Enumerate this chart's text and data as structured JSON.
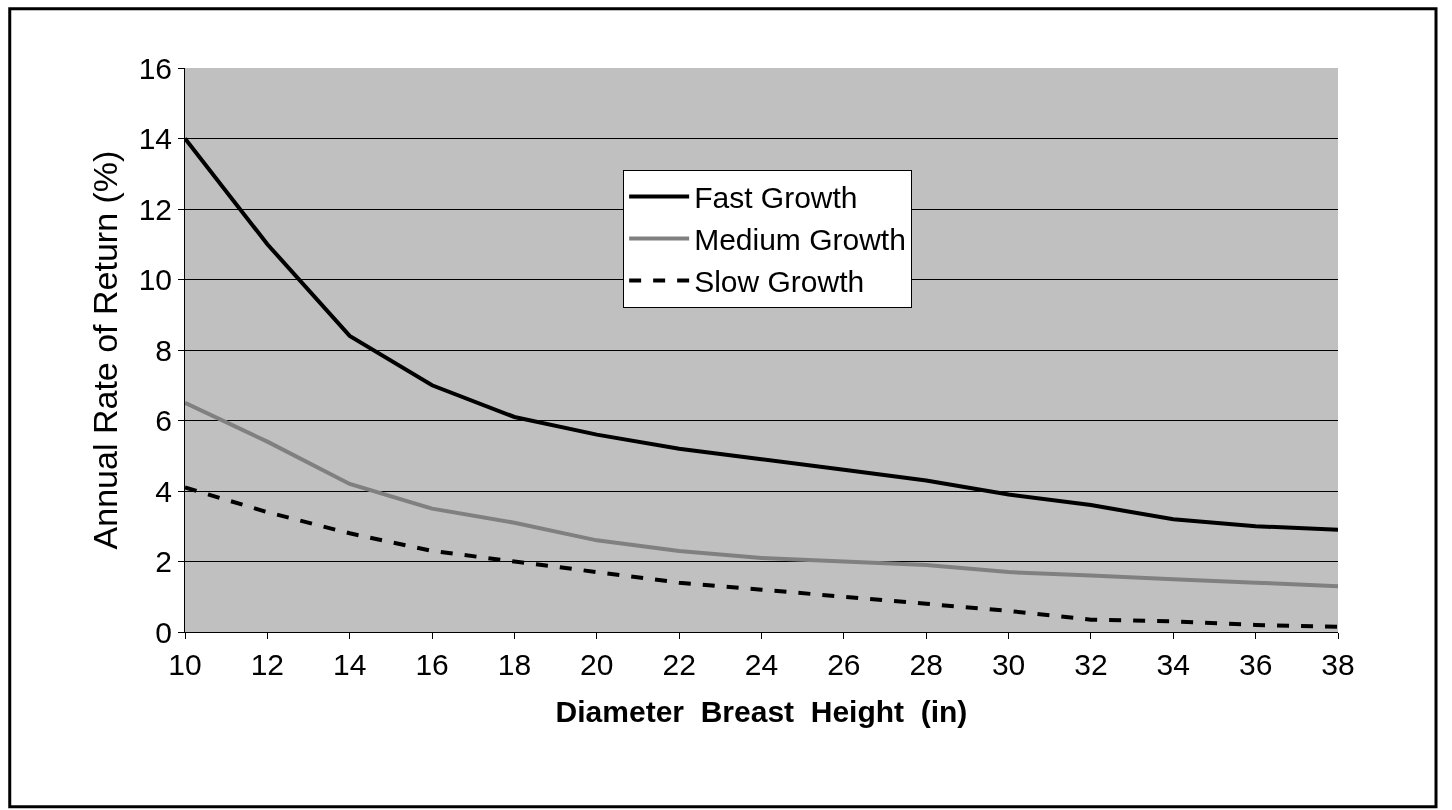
{
  "chart_data": {
    "type": "line",
    "xlabel": "Diameter  Breast  Height  (in)",
    "ylabel": "Annual Rate of Return (%)",
    "x": [
      10,
      12,
      14,
      16,
      18,
      20,
      22,
      24,
      26,
      28,
      30,
      32,
      34,
      36,
      38
    ],
    "series": [
      {
        "name": "Fast Growth",
        "color": "#000000",
        "line_style": "solid",
        "values": [
          14.0,
          11.0,
          8.4,
          7.0,
          6.1,
          5.6,
          5.2,
          4.9,
          4.6,
          4.3,
          3.9,
          3.6,
          3.2,
          3.0,
          2.9
        ]
      },
      {
        "name": "Medium Growth",
        "color": "#808080",
        "line_style": "solid",
        "values": [
          6.5,
          5.4,
          4.2,
          3.5,
          3.1,
          2.6,
          2.3,
          2.1,
          2.0,
          1.9,
          1.7,
          1.6,
          1.5,
          1.4,
          1.3
        ]
      },
      {
        "name": "Slow Growth",
        "color": "#000000",
        "line_style": "dashed",
        "values": [
          4.1,
          3.4,
          2.8,
          2.3,
          2.0,
          1.7,
          1.4,
          1.2,
          1.0,
          0.8,
          0.6,
          0.35,
          0.3,
          0.2,
          0.15
        ]
      }
    ],
    "xlim": [
      10,
      38
    ],
    "xticks": [
      10,
      12,
      14,
      16,
      18,
      20,
      22,
      24,
      26,
      28,
      30,
      32,
      34,
      36,
      38
    ],
    "ylim": [
      0,
      16
    ],
    "yticks": [
      0,
      2,
      4,
      6,
      8,
      10,
      12,
      14,
      16
    ],
    "grid": "y",
    "legend": "top",
    "marker": "none"
  }
}
